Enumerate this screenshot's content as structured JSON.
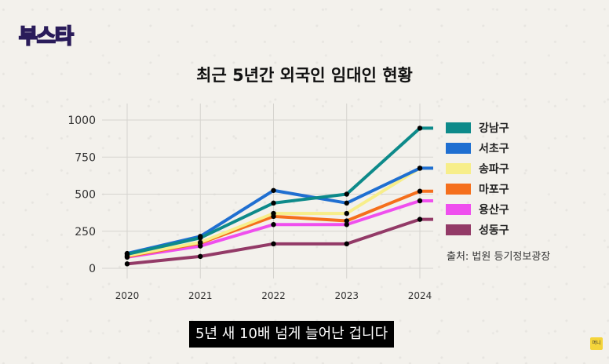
{
  "logo": {
    "text": "부스타"
  },
  "caption": "5년 새 10배 넘게 늘어난 겁니다",
  "badge": "머니",
  "chart_data": {
    "type": "line",
    "title": "최근 5년간 외국인 임대인 현황",
    "source": "출처: 법원 등기정보광장",
    "x": [
      "2020",
      "2021",
      "2022",
      "2023",
      "2024"
    ],
    "ylim": [
      0,
      1000
    ],
    "yticks": [
      0,
      250,
      500,
      750,
      1000
    ],
    "grid": true,
    "legend_position": "right",
    "series": [
      {
        "name": "강남구",
        "color": "#0d8a8a",
        "values": [
          95,
          205,
          440,
          500,
          945
        ]
      },
      {
        "name": "서초구",
        "color": "#1f6fd1",
        "values": [
          100,
          215,
          525,
          440,
          675
        ]
      },
      {
        "name": "송파구",
        "color": "#f7ee8a",
        "values": [
          85,
          175,
          370,
          370,
          675
        ]
      },
      {
        "name": "마포구",
        "color": "#f56f1c",
        "values": [
          80,
          170,
          350,
          320,
          520
        ]
      },
      {
        "name": "용산구",
        "color": "#ef4fee",
        "values": [
          75,
          150,
          295,
          295,
          455
        ]
      },
      {
        "name": "성동구",
        "color": "#933a67",
        "values": [
          30,
          80,
          165,
          165,
          330
        ]
      }
    ]
  }
}
